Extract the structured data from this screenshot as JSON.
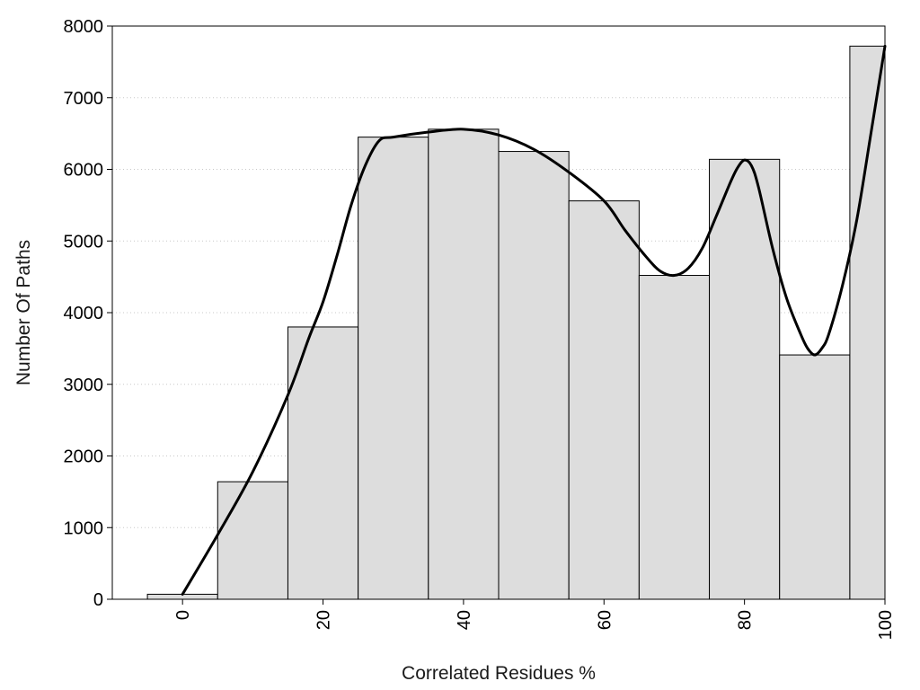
{
  "chart_data": {
    "type": "bar",
    "xlabel": "Correlated Residues %",
    "ylabel": "Number Of Paths",
    "xlim": [
      -10,
      100
    ],
    "ylim": [
      0,
      8000
    ],
    "x_ticks": [
      "0",
      "20",
      "40",
      "60",
      "80",
      "100"
    ],
    "x_tick_values": [
      0,
      20,
      40,
      60,
      80,
      100
    ],
    "y_ticks": [
      "0",
      "1000",
      "2000",
      "3000",
      "4000",
      "5000",
      "6000",
      "7000",
      "8000"
    ],
    "y_tick_values": [
      0,
      1000,
      2000,
      3000,
      4000,
      5000,
      6000,
      7000,
      8000
    ],
    "grid": "horizontal-dotted",
    "bins": [
      {
        "from": -5,
        "to": 5,
        "value": 70
      },
      {
        "from": 5,
        "to": 15,
        "value": 1640
      },
      {
        "from": 15,
        "to": 25,
        "value": 3800
      },
      {
        "from": 25,
        "to": 35,
        "value": 6450
      },
      {
        "from": 35,
        "to": 45,
        "value": 6560
      },
      {
        "from": 45,
        "to": 55,
        "value": 6250
      },
      {
        "from": 55,
        "to": 65,
        "value": 5560
      },
      {
        "from": 65,
        "to": 75,
        "value": 4520
      },
      {
        "from": 75,
        "to": 85,
        "value": 6140
      },
      {
        "from": 85,
        "to": 95,
        "value": 3410
      },
      {
        "from": 95,
        "to": 100,
        "value": 7720
      }
    ],
    "curve": {
      "x": [
        0,
        5,
        10,
        15,
        18,
        20,
        22,
        24,
        26,
        28,
        30,
        35,
        40,
        45,
        50,
        55,
        60,
        63,
        66,
        68,
        70,
        72,
        74,
        76,
        78,
        79,
        80,
        81,
        82,
        84,
        86,
        88,
        89,
        90,
        91,
        92,
        94,
        96,
        98,
        100
      ],
      "y": [
        70,
        900,
        1780,
        2850,
        3650,
        4150,
        4800,
        5500,
        6050,
        6400,
        6450,
        6520,
        6560,
        6480,
        6280,
        5960,
        5560,
        5150,
        4780,
        4580,
        4520,
        4620,
        4900,
        5350,
        5820,
        6020,
        6130,
        6050,
        5750,
        4900,
        4200,
        3700,
        3500,
        3410,
        3500,
        3700,
        4400,
        5300,
        6500,
        7720
      ]
    },
    "colors": {
      "bar_fill": "#dddddd",
      "bar_stroke": "#000000",
      "curve": "#000000",
      "grid": "#c8c8c8"
    }
  }
}
